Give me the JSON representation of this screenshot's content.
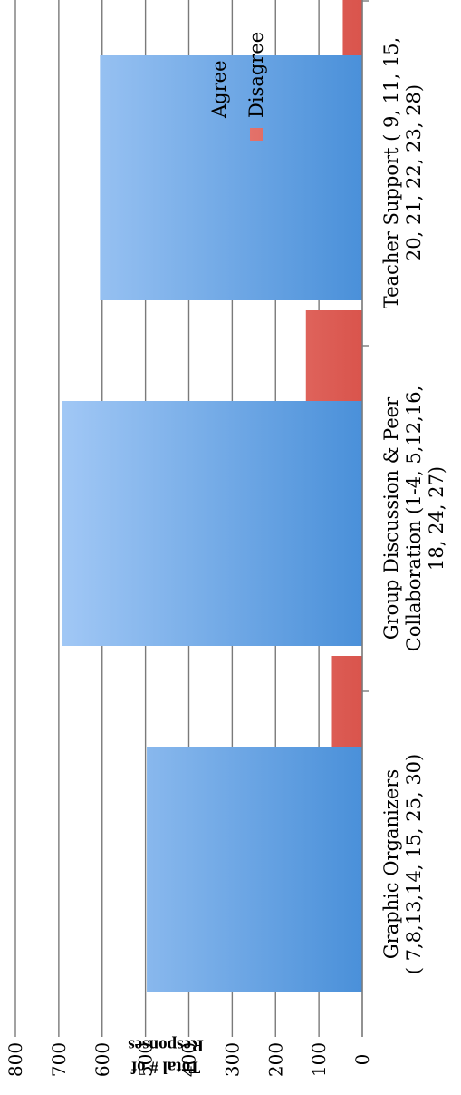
{
  "chart_data": {
    "type": "bar",
    "orientation": "vertical",
    "rotated": "90deg-clockwise",
    "ylabel": "Total # of Responses",
    "ylim": [
      0,
      800
    ],
    "yticks": [
      "0",
      "100",
      "200",
      "300",
      "400",
      "500",
      "600",
      "700",
      "800"
    ],
    "grid": true,
    "legend_position": "top-right",
    "categories": [
      [
        "Graphic Organizers",
        "( 7,8,13,14, 15, 25, 30)"
      ],
      [
        "Group Discussion & Peer",
        "Collaboration (1-4, 5,12,16,",
        "18, 24, 27)"
      ],
      [
        "Teacher Support ( 9, 11, 15,",
        "20, 21, 22, 23, 28)"
      ]
    ],
    "series": [
      {
        "name": "Agree",
        "values": [
          497,
          693,
          605
        ],
        "color_start": "#4a90d9",
        "color_end": "#b3d3fb"
      },
      {
        "name": "Disagree",
        "values": [
          70,
          130,
          45
        ],
        "color_start": "#d9544c",
        "color_end": "#fbb3ac"
      }
    ]
  }
}
